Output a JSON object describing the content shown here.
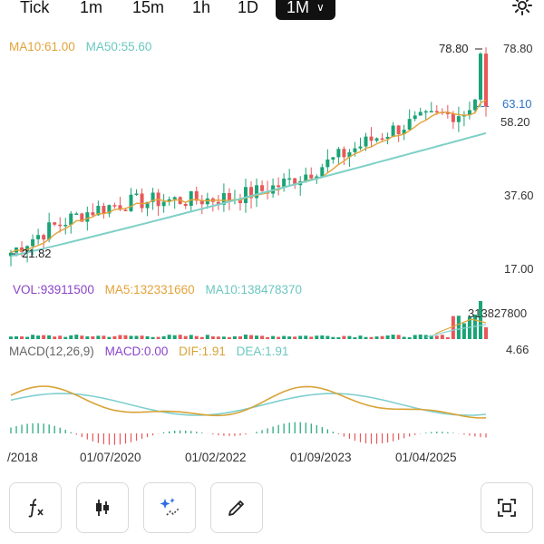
{
  "tabs": [
    {
      "label": "Tick",
      "active": false
    },
    {
      "label": "1m",
      "active": false
    },
    {
      "label": "15m",
      "active": false
    },
    {
      "label": "1h",
      "active": false
    },
    {
      "label": "1D",
      "active": false
    },
    {
      "label": "1M",
      "active": true
    }
  ],
  "price_legend": {
    "ma10": "MA10:61.00",
    "ma50": "MA50:55.60"
  },
  "price_axis": {
    "labels": [
      "78.80",
      "58.20",
      "37.60",
      "17.00"
    ],
    "current": "63.10",
    "high_marker": "78.80",
    "low_marker": "21.82"
  },
  "volume_legend": {
    "vol": "VOL:93911500",
    "ma5": "MA5:132331660",
    "ma10": "MA10:138478370"
  },
  "volume_axis": {
    "max": "313827800"
  },
  "macd_legend": {
    "name": "MACD(12,26,9)",
    "macd": "MACD:0.00",
    "dif": "DIF:1.91",
    "dea": "DEA:1.91"
  },
  "macd_axis": {
    "top": "4.66"
  },
  "date_labels": [
    "/2018",
    "01/07/2020",
    "01/02/2022",
    "01/09/2023",
    "01/04/2025"
  ],
  "colors": {
    "up": "#1aa376",
    "down": "#e8585a",
    "ma10": "#e3a33a",
    "ma50": "#7fd0c8",
    "vol_ma5": "#e3a33a",
    "vol_ma10": "#8fd3d0",
    "macd": "#8b44c9",
    "dif": "#d9a337",
    "dea": "#7fcfd0",
    "tab_active_bg": "#111111"
  },
  "toolbar": {
    "buttons": [
      {
        "icon": "function-fx-icon"
      },
      {
        "icon": "candlestick-icon"
      },
      {
        "icon": "sparkle-draw-icon"
      },
      {
        "icon": "pencil-icon"
      }
    ],
    "right_icon": "fullscreen-icon"
  },
  "chart_data": {
    "type": "candlestick",
    "price_range": [
      17.0,
      78.8
    ],
    "ma50_endpoints": [
      21.0,
      55.6
    ],
    "macd_levels": [
      0.0,
      4.66
    ],
    "volume_max": 313827800,
    "candle_count": 88
  }
}
